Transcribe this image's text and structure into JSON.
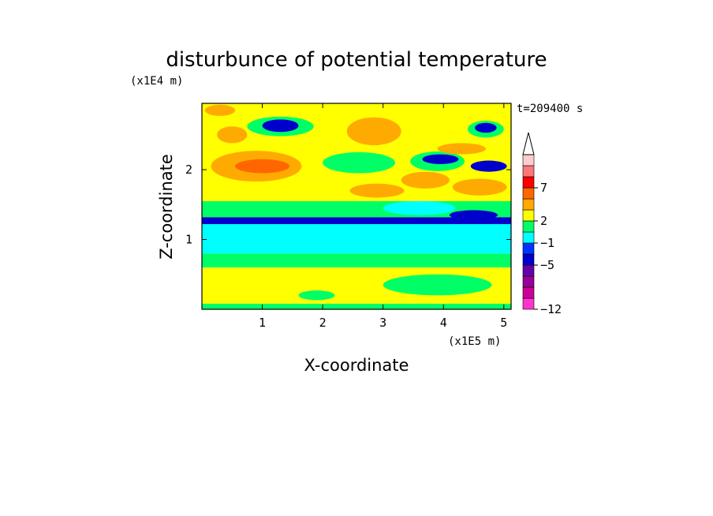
{
  "chart_data": {
    "type": "heatmap",
    "title": "disturbunce of potential temperature",
    "xlabel": "X-coordinate",
    "ylabel": "Z-coordinate",
    "x_unit_label": "(x1E5 m)",
    "y_unit_label": "(x1E4 m)",
    "time_label": "t=209400 s",
    "xlim": [
      0,
      5.12
    ],
    "ylim": [
      0,
      2.95
    ],
    "x_ticks": [
      "1",
      "2",
      "3",
      "4",
      "5"
    ],
    "y_ticks": [
      "1",
      "2"
    ],
    "colorbar": {
      "tick_labels": [
        "7",
        "2",
        "−1",
        "−5",
        "−12"
      ],
      "levels": [
        -12,
        -10,
        -8,
        -6,
        -5,
        -3,
        -1,
        0,
        2,
        3,
        5,
        7,
        9,
        11
      ],
      "colors": [
        "#ff33cc",
        "#cc0099",
        "#990099",
        "#6600aa",
        "#0000cc",
        "#0033ff",
        "#00ffff",
        "#00ff66",
        "#ffff00",
        "#ffaa00",
        "#ff6600",
        "#ff0000",
        "#ff7777",
        "#ffcccc"
      ],
      "extend": "max"
    },
    "bands": [
      {
        "z": [
          0.0,
          0.08
        ],
        "value": 0.5
      },
      {
        "z": [
          0.08,
          0.6
        ],
        "value": 2.2
      },
      {
        "z": [
          0.6,
          0.8
        ],
        "value": 0.5
      },
      {
        "z": [
          0.8,
          1.22
        ],
        "value": -0.5
      },
      {
        "z": [
          1.22,
          1.32
        ],
        "value": -3.5
      },
      {
        "z": [
          1.32,
          1.55
        ],
        "value": 0.5
      },
      {
        "z": [
          1.55,
          1.9
        ],
        "value": 2.2
      },
      {
        "z": [
          1.9,
          2.4
        ],
        "value": 2.5
      },
      {
        "z": [
          2.4,
          2.95
        ],
        "value": 2.2
      }
    ],
    "features": [
      {
        "x": 0.9,
        "z": 2.05,
        "rx": 0.75,
        "rz": 0.22,
        "value": 3.5
      },
      {
        "x": 1.0,
        "z": 2.05,
        "rx": 0.45,
        "rz": 0.1,
        "value": 5.5
      },
      {
        "x": 0.5,
        "z": 2.5,
        "rx": 0.25,
        "rz": 0.12,
        "value": 3.5
      },
      {
        "x": 1.3,
        "z": 2.62,
        "rx": 0.55,
        "rz": 0.14,
        "value": 0.5
      },
      {
        "x": 1.3,
        "z": 2.63,
        "rx": 0.3,
        "rz": 0.09,
        "value": -3.5
      },
      {
        "x": 0.3,
        "z": 2.85,
        "rx": 0.25,
        "rz": 0.08,
        "value": 3.5
      },
      {
        "x": 2.9,
        "z": 1.7,
        "rx": 0.45,
        "rz": 0.1,
        "value": 3.5
      },
      {
        "x": 2.6,
        "z": 2.1,
        "rx": 0.6,
        "rz": 0.15,
        "value": 0.5
      },
      {
        "x": 3.7,
        "z": 1.85,
        "rx": 0.4,
        "rz": 0.12,
        "value": 3.5
      },
      {
        "x": 4.6,
        "z": 1.75,
        "rx": 0.45,
        "rz": 0.12,
        "value": 3.5
      },
      {
        "x": 3.9,
        "z": 2.12,
        "rx": 0.45,
        "rz": 0.14,
        "value": 0.5
      },
      {
        "x": 3.95,
        "z": 2.15,
        "rx": 0.3,
        "rz": 0.07,
        "value": -3.5
      },
      {
        "x": 4.75,
        "z": 2.05,
        "rx": 0.3,
        "rz": 0.08,
        "value": -3.5
      },
      {
        "x": 4.7,
        "z": 2.58,
        "rx": 0.3,
        "rz": 0.12,
        "value": 0.5
      },
      {
        "x": 4.7,
        "z": 2.6,
        "rx": 0.18,
        "rz": 0.07,
        "value": -3.5
      },
      {
        "x": 4.3,
        "z": 2.3,
        "rx": 0.4,
        "rz": 0.08,
        "value": 3.5
      },
      {
        "x": 3.6,
        "z": 1.45,
        "rx": 0.6,
        "rz": 0.1,
        "value": -0.5
      },
      {
        "x": 4.5,
        "z": 1.35,
        "rx": 0.4,
        "rz": 0.07,
        "value": -3.5
      },
      {
        "x": 3.9,
        "z": 0.35,
        "rx": 0.9,
        "rz": 0.15,
        "value": 0.5
      },
      {
        "x": 1.9,
        "z": 0.2,
        "rx": 0.3,
        "rz": 0.07,
        "value": 0.5
      },
      {
        "x": 2.85,
        "z": 2.55,
        "rx": 0.45,
        "rz": 0.2,
        "value": 3.5
      }
    ]
  }
}
